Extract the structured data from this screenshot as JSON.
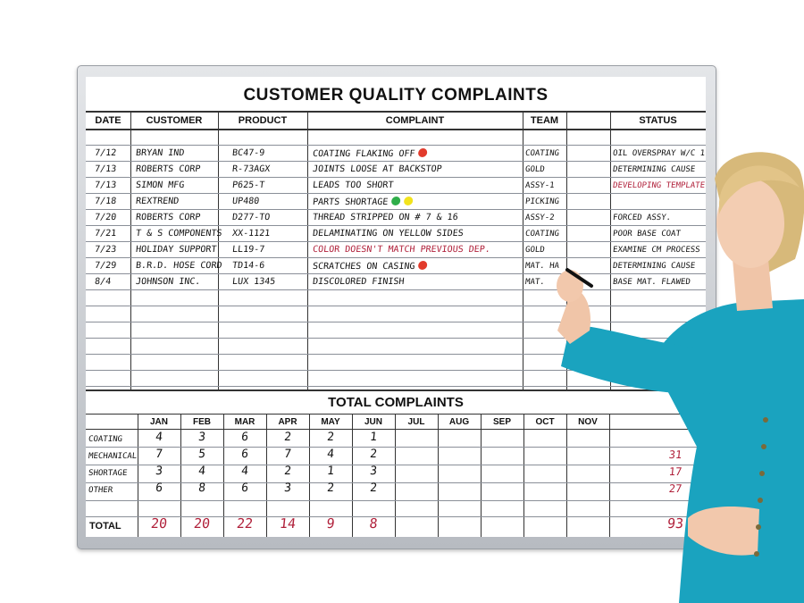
{
  "board": {
    "title": "CUSTOMER QUALITY COMPLAINTS",
    "columns": [
      "DATE",
      "CUSTOMER",
      "PRODUCT",
      "COMPLAINT",
      "TEAM",
      "STATUS"
    ],
    "rows": [
      {
        "date": "7/12",
        "customer": "BRYAN IND",
        "product": "BC47-9",
        "complaint": "COATING FLAKING OFF",
        "team": "COATING",
        "status": "OIL OVERSPRAY W/C 17",
        "status_red": false,
        "complaint_red": false,
        "dots": [
          "#e23b2c"
        ]
      },
      {
        "date": "7/13",
        "customer": "ROBERTS CORP",
        "product": "R-73AGX",
        "complaint": "JOINTS LOOSE AT BACKSTOP",
        "team": "GOLD",
        "status": "DETERMINING CAUSE",
        "status_red": false,
        "complaint_red": false,
        "dots": []
      },
      {
        "date": "7/13",
        "customer": "SIMON MFG",
        "product": "P625-T",
        "complaint": "LEADS TOO SHORT",
        "team": "ASSY-1",
        "status": "DEVELOPING TEMPLATE",
        "status_red": true,
        "complaint_red": false,
        "dots": []
      },
      {
        "date": "7/18",
        "customer": "REXTREND",
        "product": "UP480",
        "complaint": "PARTS SHORTAGE",
        "team": "PICKING",
        "status": "",
        "status_red": false,
        "complaint_red": false,
        "dots": [
          "#2fae4a",
          "#f2e31c"
        ]
      },
      {
        "date": "7/20",
        "customer": "ROBERTS CORP",
        "product": "D277-TO",
        "complaint": "THREAD STRIPPED ON # 7 & 16",
        "team": "ASSY-2",
        "status": "FORCED ASSY.",
        "status_red": false,
        "complaint_red": false,
        "dots": []
      },
      {
        "date": "7/21",
        "customer": "T & S COMPONENTS",
        "product": "XX-1121",
        "complaint": "DELAMINATING ON YELLOW SIDES",
        "team": "COATING",
        "status": "POOR BASE COAT",
        "status_red": false,
        "complaint_red": false,
        "dots": []
      },
      {
        "date": "7/23",
        "customer": "HOLIDAY SUPPORT",
        "product": "LL19-7",
        "complaint": "COLOR DOESN'T MATCH PREVIOUS DEP.",
        "team": "GOLD",
        "status": "EXAMINE CM PROCESS",
        "status_red": false,
        "complaint_red": true,
        "dots": []
      },
      {
        "date": "7/29",
        "customer": "B.R.D. HOSE CORD",
        "product": "TD14-6",
        "complaint": "SCRATCHES ON CASING",
        "team": "MAT. HA",
        "status": "DETERMINING CAUSE",
        "status_red": false,
        "complaint_red": false,
        "dots": [
          "#e23b2c"
        ]
      },
      {
        "date": "8/4",
        "customer": "JOHNSON INC.",
        "product": "LUX 1345",
        "complaint": "DISCOLORED FINISH",
        "team": "MAT.",
        "status": "BASE MAT. FLAWED",
        "status_red": false,
        "complaint_red": false,
        "dots": []
      }
    ],
    "totals_title": "TOTAL COMPLAINTS",
    "months": [
      "JAN",
      "FEB",
      "MAR",
      "APR",
      "MAY",
      "JUN",
      "JUL",
      "AUG",
      "SEP",
      "OCT",
      "NOV"
    ],
    "categories": [
      {
        "label": "COATING",
        "values": [
          "4",
          "3",
          "6",
          "2",
          "2",
          "1"
        ],
        "total": ""
      },
      {
        "label": "MECHANICAL",
        "values": [
          "7",
          "5",
          "6",
          "7",
          "4",
          "2"
        ],
        "total": "31"
      },
      {
        "label": "SHORTAGE",
        "values": [
          "3",
          "4",
          "4",
          "2",
          "1",
          "3"
        ],
        "total": "17"
      },
      {
        "label": "OTHER",
        "values": [
          "6",
          "8",
          "6",
          "3",
          "2",
          "2"
        ],
        "total": "27"
      }
    ],
    "total_label": "TOTAL",
    "month_totals": [
      "20",
      "20",
      "22",
      "14",
      "9",
      "8"
    ],
    "grand_total": "93"
  },
  "colors": {
    "marker_black": "#111111",
    "marker_red": "#b0203a",
    "frame": "#c4c8cd"
  }
}
